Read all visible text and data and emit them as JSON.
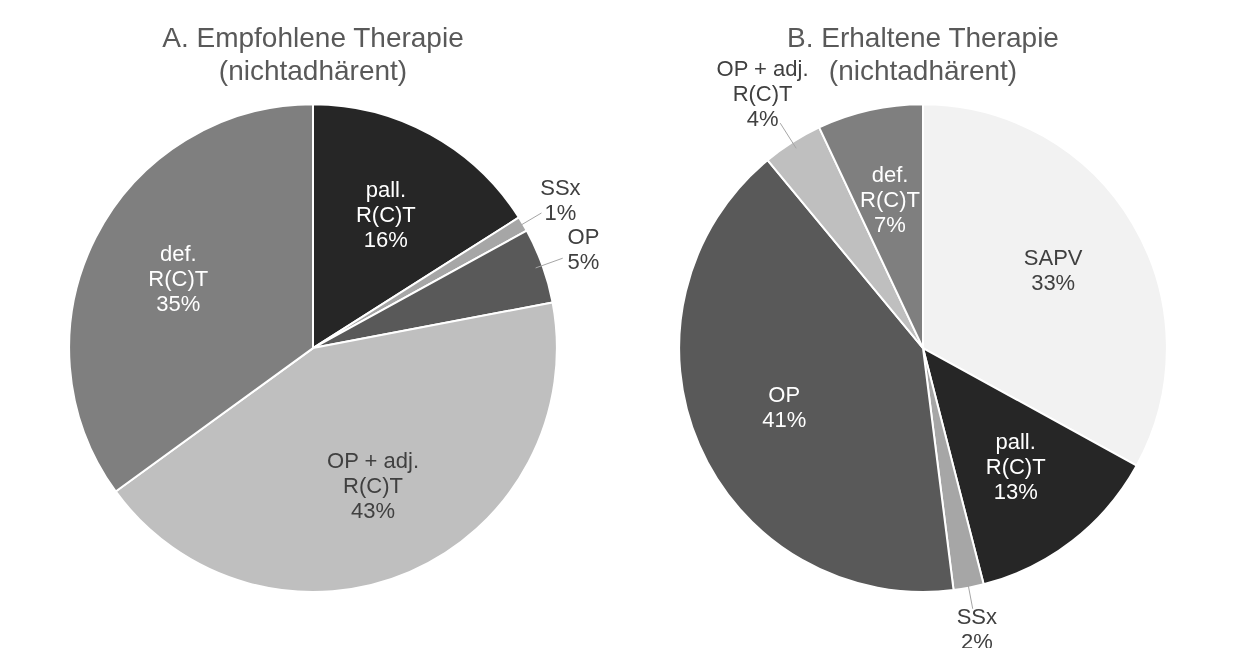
{
  "chart_data": [
    {
      "type": "pie",
      "title": "A. Empfohlene Therapie\n(nichtadhärent)",
      "categories": [
        "pall. R(C)T",
        "SSx",
        "OP",
        "OP + adj. R(C)T",
        "def. R(C)T"
      ],
      "values": [
        16,
        1,
        5,
        43,
        35
      ],
      "value_labels": [
        "16%",
        "1%",
        "5%",
        "43%",
        "35%"
      ],
      "colors": [
        "#262626",
        "#a6a6a6",
        "#595959",
        "#bfbfbf",
        "#7f7f7f"
      ],
      "legend": false
    },
    {
      "type": "pie",
      "title": "B. Erhaltene Therapie\n(nichtadhärent)",
      "categories": [
        "SAPV",
        "pall. R(C)T",
        "SSx",
        "OP",
        "OP + adj. R(C)T",
        "def. R(C)T"
      ],
      "values": [
        33,
        13,
        2,
        41,
        4,
        7
      ],
      "value_labels": [
        "33%",
        "13%",
        "2%",
        "41%",
        "4%",
        "7%"
      ],
      "colors": [
        "#f2f2f2",
        "#262626",
        "#a6a6a6",
        "#595959",
        "#bfbfbf",
        "#7f7f7f"
      ],
      "legend": false
    }
  ]
}
